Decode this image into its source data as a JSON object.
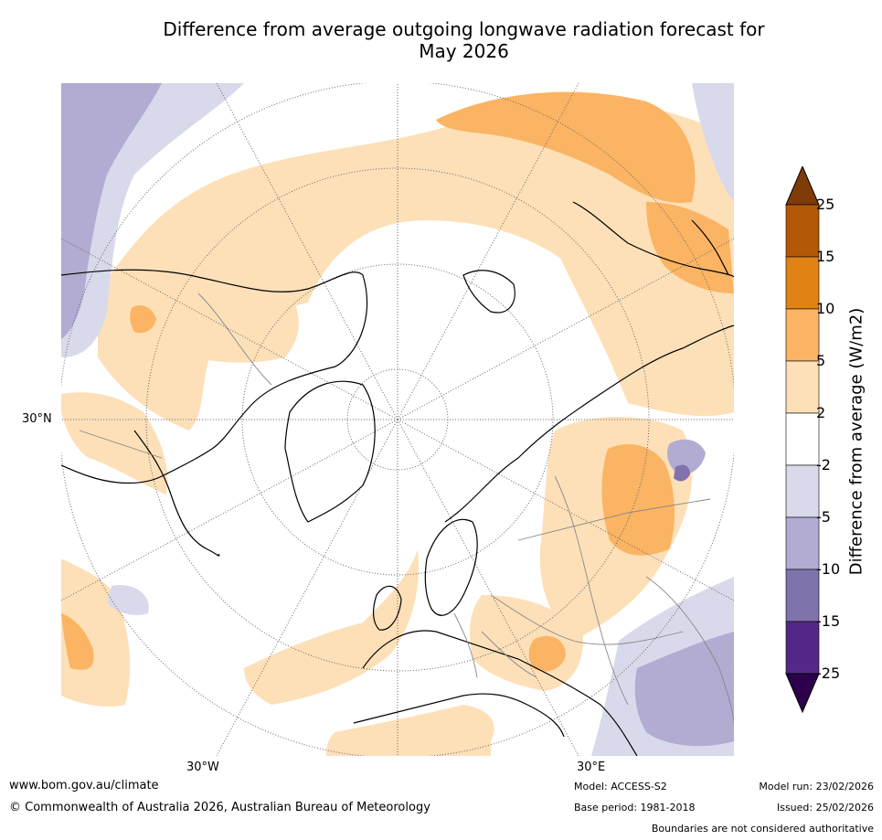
{
  "title_line1": "Difference from average outgoing longwave radiation forecast for",
  "title_line2": "May 2026",
  "map": {
    "labels": {
      "lat_30n": "30°N",
      "lon_30w": "30°W",
      "lon_30e": "30°E"
    },
    "colors": {
      "ocean": "#ffffff",
      "pos2": "#fde0b8",
      "pos5": "#fbb463",
      "pos10": "#e08214",
      "pos15": "#b35806",
      "pos25": "#7f3b08",
      "neg2": "#d8daeb",
      "neg5": "#b2abd2",
      "neg10": "#8073ac",
      "neg15": "#542788",
      "neg25": "#2d004b",
      "coast": "#000000",
      "border": "#888888",
      "grid": "#666666"
    }
  },
  "colorbar": {
    "title": "Difference from average (W/m2)",
    "ticks": [
      "25",
      "15",
      "10",
      "5",
      "2",
      "-2",
      "-5",
      "-10",
      "-15",
      "-25"
    ]
  },
  "footer": {
    "website": "www.bom.gov.au/climate",
    "copyright": "© Commonwealth of Australia 2026, Australian Bureau of Meteorology",
    "model": "Model: ACCESS-S2",
    "base_period": "Base period: 1981-2018",
    "model_run": "Model run: 23/02/2026",
    "issued": "Issued: 25/02/2026",
    "disclaimer": "Boundaries are not considered authoritative"
  }
}
